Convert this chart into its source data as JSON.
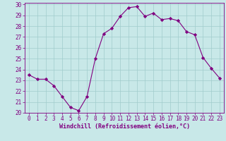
{
  "x": [
    0,
    1,
    2,
    3,
    4,
    5,
    6,
    7,
    8,
    9,
    10,
    11,
    12,
    13,
    14,
    15,
    16,
    17,
    18,
    19,
    20,
    21,
    22,
    23
  ],
  "y": [
    23.5,
    23.1,
    23.1,
    22.5,
    21.5,
    20.5,
    20.2,
    21.5,
    25.0,
    27.3,
    27.8,
    28.9,
    29.7,
    29.8,
    28.9,
    29.2,
    28.6,
    28.7,
    28.5,
    27.5,
    27.2,
    25.1,
    24.1,
    23.2
  ],
  "line_color": "#800080",
  "marker": "D",
  "marker_size": 2.2,
  "bg_color": "#c8e8e8",
  "grid_color": "#a0cccc",
  "xlabel": "Windchill (Refroidissement éolien,°C)",
  "xlabel_fontsize": 6.0,
  "tick_fontsize": 5.5,
  "ylim": [
    20,
    30
  ],
  "xlim": [
    -0.5,
    23.5
  ],
  "yticks": [
    20,
    21,
    22,
    23,
    24,
    25,
    26,
    27,
    28,
    29,
    30
  ],
  "xticks": [
    0,
    1,
    2,
    3,
    4,
    5,
    6,
    7,
    8,
    9,
    10,
    11,
    12,
    13,
    14,
    15,
    16,
    17,
    18,
    19,
    20,
    21,
    22,
    23
  ]
}
